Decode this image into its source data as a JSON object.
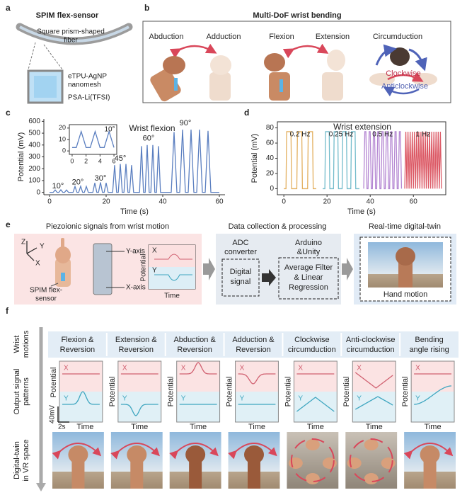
{
  "panel_a": {
    "label": "a",
    "title": "SPIM flex-sensor",
    "fiber_label": [
      "Square prism-shaped",
      "fiber"
    ],
    "layer_labels": [
      [
        "eTPU-AgNP",
        "nanomesh"
      ],
      [
        "PSA-Li(TFSI)"
      ]
    ]
  },
  "panel_b": {
    "label": "b",
    "title": "Multi-DoF wrist bending",
    "motions": [
      "Abduction",
      "Adduction",
      "Flexion",
      "Extension",
      "Circumduction"
    ],
    "directions": [
      "Clockwise",
      "Anticlockwise"
    ]
  },
  "chart_data": [
    {
      "type": "line",
      "panel_label": "c",
      "annotation": "Wrist flexion",
      "x_label": "Time (s)",
      "y_label": "Potential (mV)",
      "xlim": [
        -2,
        62
      ],
      "ylim": [
        -20,
        620
      ],
      "xticks": [
        0,
        20,
        40,
        60
      ],
      "yticks": [
        0,
        100,
        200,
        300,
        400,
        500,
        600
      ],
      "angle_labels": [
        "10°",
        "20°",
        "30°",
        "45°",
        "60°",
        "90°"
      ],
      "x": [
        0,
        1.3,
        2,
        2.7,
        3.3,
        4,
        4.7,
        5.3,
        6,
        6.7,
        8.3,
        9,
        9.7,
        10.3,
        11,
        11.7,
        12.3,
        13,
        13.7,
        15.3,
        16,
        16.7,
        17.3,
        18,
        18.7,
        19.3,
        20,
        20.7,
        22.3,
        23,
        23.7,
        24.3,
        25,
        25.7,
        26.3,
        27,
        27.7,
        28.3,
        29,
        29.7,
        31.8,
        32.5,
        33.2,
        33.8,
        34.5,
        35.2,
        35.8,
        36.5,
        37.2,
        37.8,
        38.5,
        39.2,
        43,
        44,
        45,
        46,
        47,
        48,
        49,
        50,
        51,
        52,
        53,
        54,
        55,
        56,
        57,
        60
      ],
      "series": [
        {
          "color": "#5b7fc0",
          "values": [
            0,
            0,
            20,
            0,
            0,
            22,
            0,
            0,
            20,
            0,
            0,
            50,
            0,
            0,
            52,
            0,
            0,
            50,
            0,
            0,
            80,
            0,
            0,
            85,
            0,
            0,
            80,
            0,
            0,
            230,
            0,
            0,
            240,
            0,
            0,
            240,
            0,
            0,
            230,
            0,
            0,
            390,
            0,
            0,
            400,
            0,
            0,
            400,
            0,
            0,
            390,
            0,
            0,
            510,
            0,
            0,
            530,
            0,
            0,
            530,
            0,
            0,
            530,
            0,
            0,
            520,
            0,
            0
          ]
        }
      ]
    },
    {
      "type": "line",
      "annotation": "10°",
      "xlim": [
        -0.4,
        6.4
      ],
      "ylim": [
        -3,
        23
      ],
      "xticks": [
        0,
        2,
        4,
        6
      ],
      "yticks": [
        0,
        10,
        20
      ],
      "x": [
        0,
        0.6,
        1.3,
        2,
        2.6,
        3.3,
        4,
        4.6,
        5.3,
        6
      ],
      "series": [
        {
          "color": "#5b7fc0",
          "values": [
            3,
            3,
            17,
            3,
            3,
            17,
            3,
            3,
            17,
            3
          ]
        }
      ]
    },
    {
      "type": "line",
      "panel_label": "d",
      "annotation": "Wrist extension",
      "x_label": "Time (s)",
      "y_label": "Potential (mV)",
      "xlim": [
        -3,
        75
      ],
      "ylim": [
        -8,
        88
      ],
      "xticks": [
        0,
        20,
        40,
        60
      ],
      "yticks": [
        0,
        20,
        40,
        60,
        80
      ],
      "series": [
        {
          "name": "0.2 Hz",
          "color": "#e3b060",
          "x": [
            0,
            1,
            1.3,
            3.3,
            3.6,
            6,
            6.3,
            8.3,
            8.6,
            11,
            11.3,
            13.3,
            13.6,
            15
          ],
          "values": [
            0,
            0,
            75,
            75,
            0,
            0,
            75,
            75,
            0,
            0,
            75,
            75,
            0,
            0
          ]
        },
        {
          "name": "0.25 Hz",
          "color": "#74bccb",
          "x": [
            18,
            19,
            19.3,
            21,
            21.3,
            23,
            23.3,
            25,
            25.3,
            27,
            27.3,
            29,
            29.3,
            31,
            31.3,
            33,
            33.3,
            35
          ],
          "values": [
            0,
            0,
            75,
            75,
            0,
            0,
            75,
            75,
            0,
            0,
            75,
            75,
            0,
            0,
            75,
            75,
            0,
            0
          ]
        },
        {
          "name": "0.5 Hz",
          "color": "#b486d2",
          "x": [
            37,
            37.5,
            38,
            38.5,
            39,
            39.5,
            40,
            40.5,
            41,
            41.5,
            42,
            42.5,
            43,
            43.5,
            44,
            44.5,
            45,
            45.5,
            46,
            46.5,
            47,
            47.5,
            48,
            48.5,
            49,
            49.5,
            50,
            50.5,
            51,
            51.5,
            52,
            52.5,
            53,
            53.5,
            54,
            54.5
          ],
          "values": [
            0,
            75,
            75,
            0,
            0,
            75,
            75,
            0,
            0,
            75,
            75,
            0,
            0,
            75,
            75,
            0,
            0,
            75,
            75,
            0,
            0,
            75,
            75,
            0,
            0,
            75,
            75,
            0,
            0,
            75,
            75,
            0,
            0,
            75,
            75,
            0
          ]
        },
        {
          "name": "1 Hz",
          "color": "#dc5a66",
          "x": [
            56,
            56.5,
            57,
            57.5,
            58,
            58.5,
            59,
            59.5,
            60,
            60.5,
            61,
            61.5,
            62,
            62.5,
            63,
            63.5,
            64,
            64.5,
            65,
            65.5,
            66,
            66.5,
            67,
            67.5,
            68,
            68.5,
            69,
            69.5,
            70,
            70.5,
            71,
            71.5,
            72,
            72.5,
            73
          ],
          "values": [
            0,
            75,
            0,
            75,
            0,
            75,
            0,
            75,
            0,
            75,
            0,
            75,
            0,
            75,
            0,
            75,
            0,
            75,
            0,
            75,
            0,
            75,
            0,
            75,
            0,
            75,
            0,
            75,
            0,
            75,
            0,
            75,
            0,
            75,
            0
          ]
        }
      ]
    }
  ],
  "panel_e": {
    "label": "e",
    "titles": [
      "Piezoionic signals from wrist motion",
      "Data collection & processing",
      "Real-time digital-twin"
    ],
    "axes": [
      "Z",
      "Y",
      "X"
    ],
    "sensor": [
      "SPIM flex-",
      "sensor"
    ],
    "fiber_axes": [
      "Y-axis",
      "X-axis"
    ],
    "signal_plot": {
      "channels": [
        "X",
        "Y"
      ],
      "y_label": "Potential",
      "x_label": "Time"
    },
    "adc": [
      "ADC",
      "converter"
    ],
    "digital": [
      "Digital",
      "signal"
    ],
    "software": [
      "Arduino",
      "&Unity"
    ],
    "filter": [
      "Average Filter",
      "& Linear",
      "Regression"
    ],
    "output": "Hand motion"
  },
  "panel_f": {
    "label": "f",
    "rows": [
      [
        "Wrist",
        "motions"
      ],
      [
        "Output signal",
        "patterns"
      ],
      [
        "Digital-twin",
        "in VR space"
      ]
    ],
    "columns": [
      [
        "Flexion &",
        "Reversion"
      ],
      [
        "Extension &",
        "Reversion"
      ],
      [
        "Abduction &",
        "Reversion"
      ],
      [
        "Adduction &",
        "Reversion"
      ],
      [
        "Clockwise",
        "circumduction"
      ],
      [
        "Anti-clockwise",
        "circumduction"
      ],
      [
        "Bending",
        "angle rising"
      ]
    ],
    "channels": [
      "X",
      "Y"
    ],
    "y_label": "Potential",
    "x_label": "Time",
    "scale": [
      "40mV",
      "2s"
    ]
  }
}
